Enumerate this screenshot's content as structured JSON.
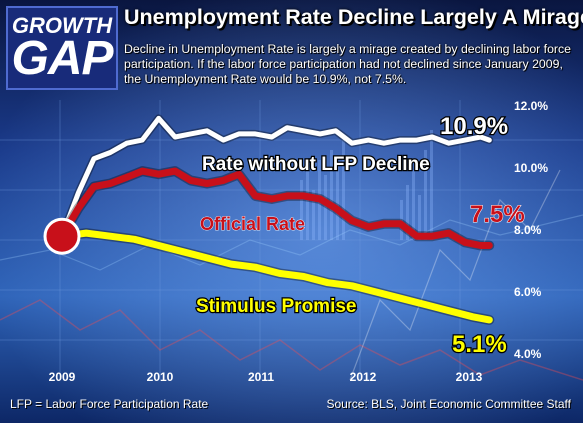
{
  "header": {
    "logo_line1": "GROWTH",
    "logo_line2": "GAP",
    "title": "Unemployment Rate Decline Largely A Mirage",
    "subtitle": "Decline in Unemployment Rate is largely a mirage created by declining labor force participation.  If the labor force participation had not declined since January 2009, the Unemployment Rate would be 10.9%, not 7.5%."
  },
  "footer": {
    "footnote": "LFP = Labor Force Participation Rate",
    "source": "Source:  BLS, Joint Economic Committee Staff"
  },
  "colors": {
    "white_series": "#ffffff",
    "red_series": "#c8101a",
    "yellow_series": "#ffff00",
    "background": "#0c1a44"
  },
  "chart_data": {
    "type": "line",
    "title": "Unemployment Rate Decline Largely A Mirage",
    "xlabel": "",
    "ylabel": "",
    "x_ticks": [
      "2009",
      "2010",
      "2011",
      "2012",
      "2013"
    ],
    "y_ticks": [
      "12.0%",
      "10.0%",
      "8.0%",
      "6.0%",
      "4.0%"
    ],
    "ylim": [
      4.0,
      12.0
    ],
    "xlim": [
      2009.0,
      2013.5
    ],
    "grid": false,
    "legend": "inline labels",
    "series": [
      {
        "name": "Rate without LFP Decline",
        "color": "#ffffff",
        "end_label": "10.9%",
        "points": [
          [
            2009.0,
            7.8
          ],
          [
            2009.17,
            9.2
          ],
          [
            2009.33,
            10.3
          ],
          [
            2009.5,
            10.5
          ],
          [
            2009.67,
            10.8
          ],
          [
            2009.83,
            10.9
          ],
          [
            2010.0,
            11.6
          ],
          [
            2010.17,
            11.0
          ],
          [
            2010.33,
            11.1
          ],
          [
            2010.5,
            11.2
          ],
          [
            2010.67,
            10.9
          ],
          [
            2010.83,
            11.1
          ],
          [
            2011.0,
            11.1
          ],
          [
            2011.17,
            11.0
          ],
          [
            2011.33,
            11.3
          ],
          [
            2011.5,
            11.2
          ],
          [
            2011.67,
            11.1
          ],
          [
            2011.83,
            11.2
          ],
          [
            2012.0,
            10.8
          ],
          [
            2012.17,
            10.9
          ],
          [
            2012.33,
            10.8
          ],
          [
            2012.5,
            10.9
          ],
          [
            2012.67,
            10.9
          ],
          [
            2012.83,
            11.0
          ],
          [
            2013.0,
            10.8
          ],
          [
            2013.17,
            10.9
          ],
          [
            2013.33,
            11.0
          ],
          [
            2013.42,
            10.9
          ]
        ]
      },
      {
        "name": "Official Rate",
        "color": "#c8101a",
        "end_label": "7.5%",
        "points": [
          [
            2009.0,
            7.8
          ],
          [
            2009.17,
            8.7
          ],
          [
            2009.33,
            9.4
          ],
          [
            2009.5,
            9.5
          ],
          [
            2009.67,
            9.7
          ],
          [
            2009.83,
            9.9
          ],
          [
            2010.0,
            9.8
          ],
          [
            2010.17,
            9.9
          ],
          [
            2010.33,
            9.6
          ],
          [
            2010.5,
            9.5
          ],
          [
            2010.67,
            9.6
          ],
          [
            2010.83,
            9.8
          ],
          [
            2011.0,
            9.1
          ],
          [
            2011.17,
            9.0
          ],
          [
            2011.33,
            9.1
          ],
          [
            2011.5,
            9.1
          ],
          [
            2011.67,
            9.0
          ],
          [
            2011.83,
            8.7
          ],
          [
            2012.0,
            8.3
          ],
          [
            2012.17,
            8.1
          ],
          [
            2012.33,
            8.2
          ],
          [
            2012.5,
            8.2
          ],
          [
            2012.67,
            7.8
          ],
          [
            2012.83,
            7.8
          ],
          [
            2013.0,
            7.9
          ],
          [
            2013.17,
            7.6
          ],
          [
            2013.33,
            7.5
          ],
          [
            2013.42,
            7.5
          ]
        ]
      },
      {
        "name": "Stimulus Promise",
        "color": "#ffff00",
        "end_label": "5.1%",
        "points": [
          [
            2009.0,
            7.8
          ],
          [
            2009.25,
            7.9
          ],
          [
            2009.5,
            7.8
          ],
          [
            2009.75,
            7.7
          ],
          [
            2010.0,
            7.5
          ],
          [
            2010.25,
            7.3
          ],
          [
            2010.5,
            7.1
          ],
          [
            2010.75,
            6.9
          ],
          [
            2011.0,
            6.8
          ],
          [
            2011.25,
            6.6
          ],
          [
            2011.5,
            6.5
          ],
          [
            2011.75,
            6.3
          ],
          [
            2012.0,
            6.2
          ],
          [
            2012.25,
            6.0
          ],
          [
            2012.5,
            5.8
          ],
          [
            2012.75,
            5.6
          ],
          [
            2013.0,
            5.4
          ],
          [
            2013.25,
            5.2
          ],
          [
            2013.42,
            5.1
          ]
        ]
      }
    ]
  }
}
